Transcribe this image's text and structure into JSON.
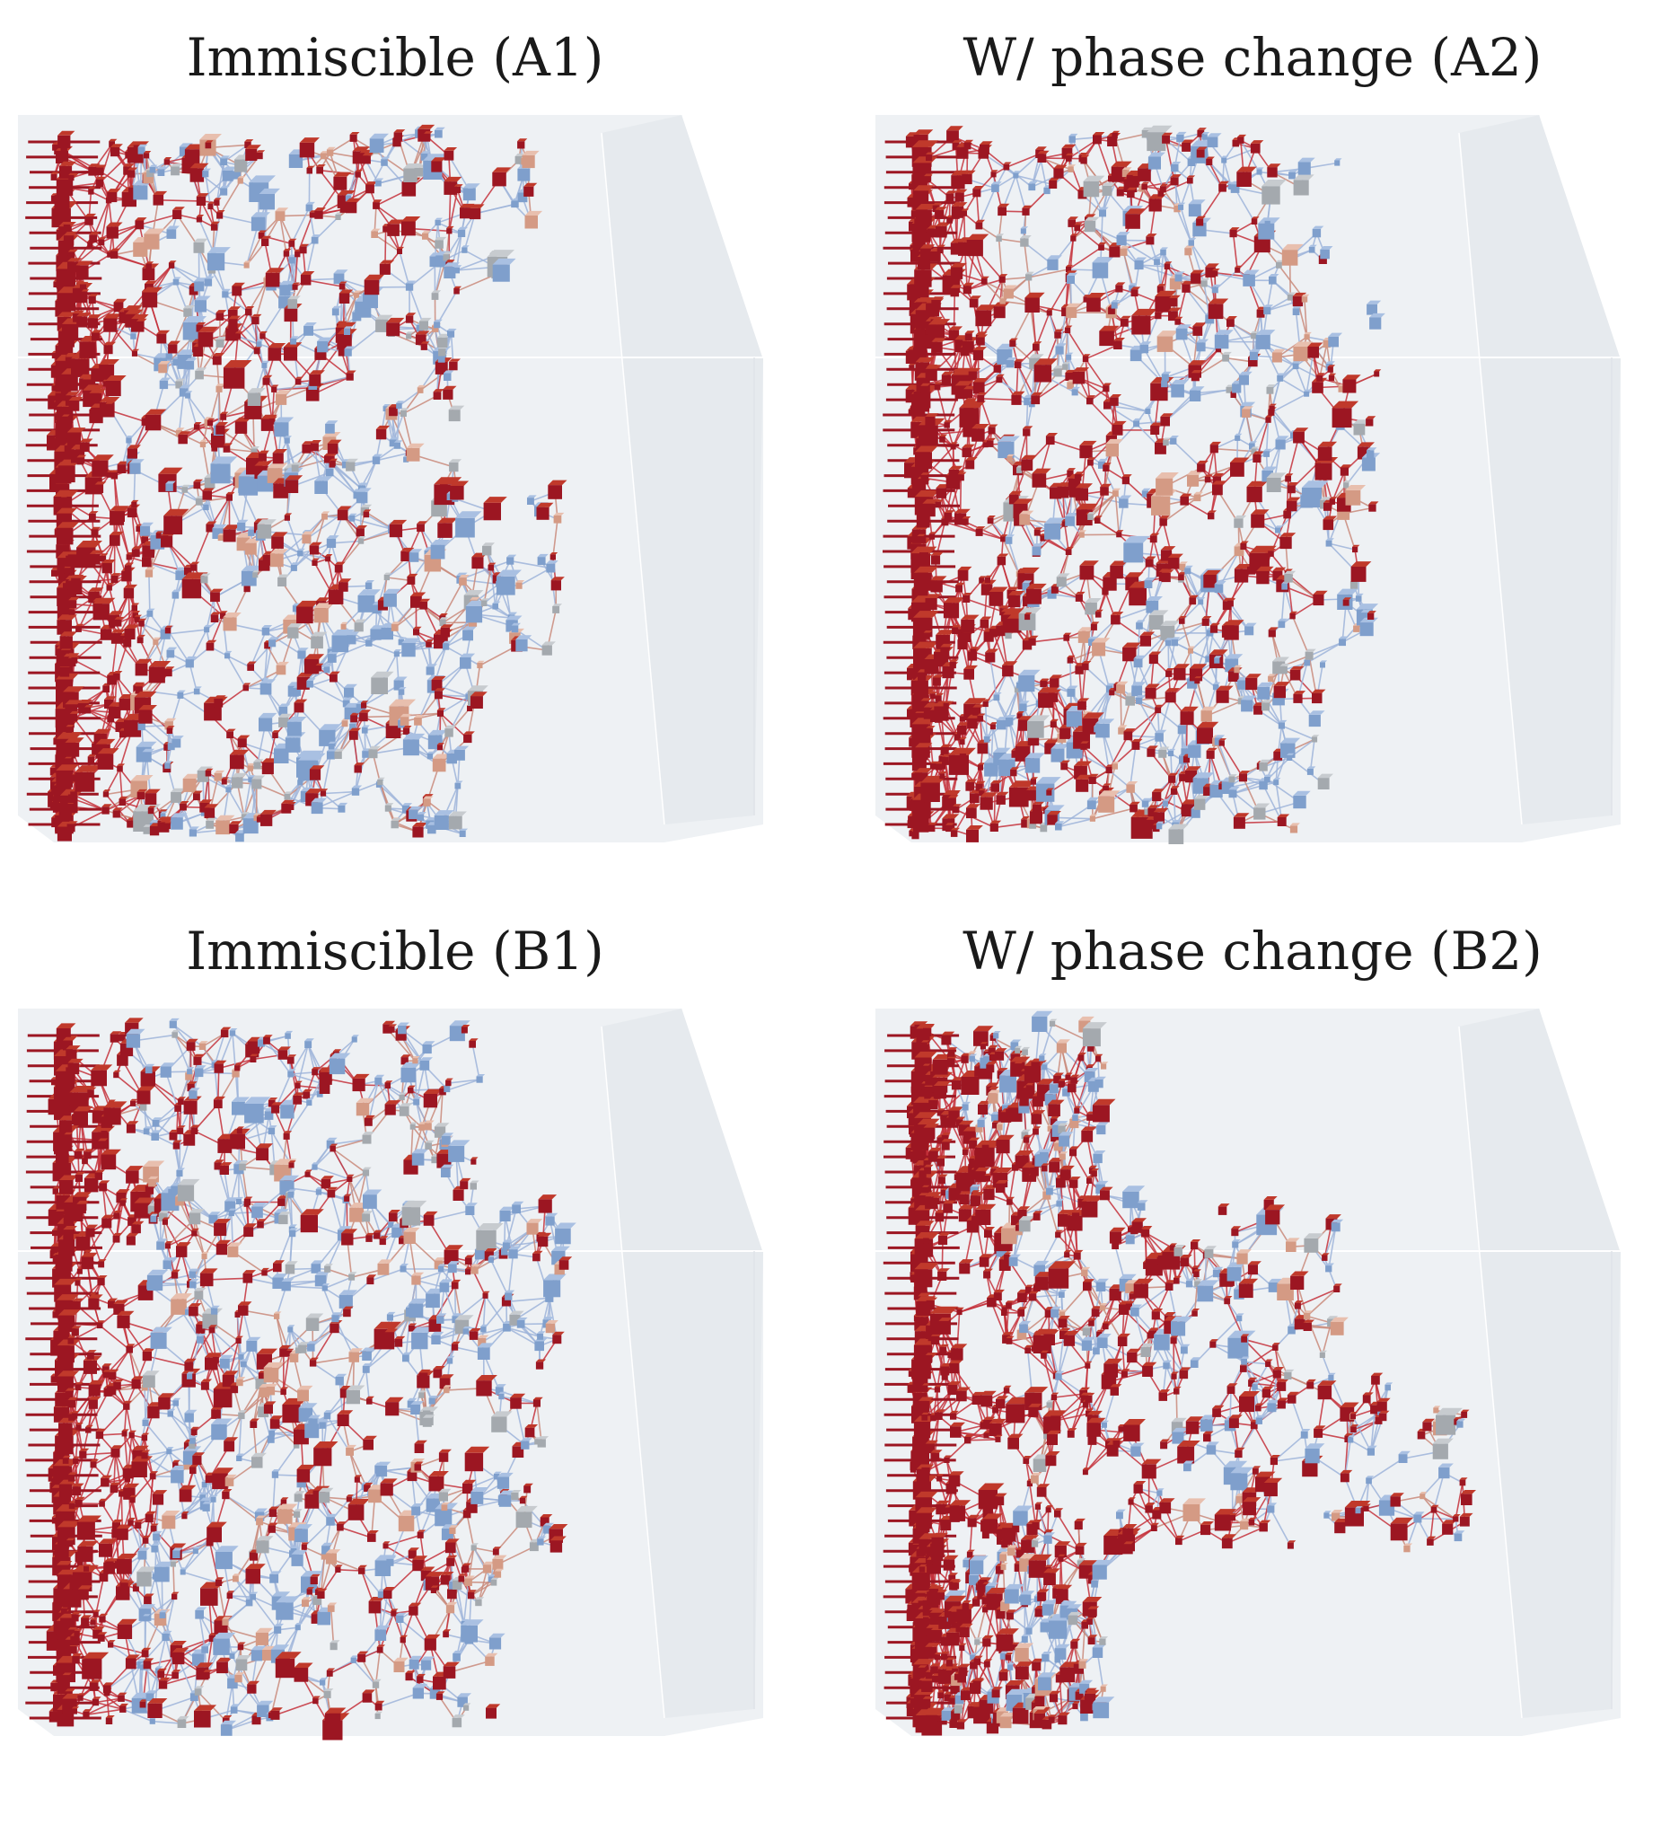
{
  "panels": [
    {
      "id": "a1",
      "title": "Immiscible (A1)",
      "front_reach": 0.74,
      "lobe_reach": [
        0.74,
        0.62,
        0.78,
        0.66
      ],
      "red_fraction": 0.55,
      "seed": 11
    },
    {
      "id": "a2",
      "title": "W/ phase change (A2)",
      "front_reach": 0.72,
      "lobe_reach": [
        0.66,
        0.72,
        0.72,
        0.64
      ],
      "red_fraction": 0.7,
      "seed": 23
    },
    {
      "id": "b1",
      "title": "Immiscible (B1)",
      "front_reach": 0.78,
      "lobe_reach": [
        0.66,
        0.8,
        0.78,
        0.7
      ],
      "red_fraction": 0.55,
      "seed": 37
    },
    {
      "id": "b2",
      "title": "W/ phase change (B2)",
      "front_reach": 0.82,
      "lobe_reach": [
        0.3,
        0.66,
        0.86,
        0.3
      ],
      "red_fraction": 0.88,
      "seed": 53
    }
  ],
  "colors": {
    "box_fill": "#eef1f4",
    "box_edge": "#ffffff",
    "invading": "#9c1622",
    "invading_light": "#c0392b",
    "defending": "#7f9fcc",
    "intermediate_warm": "#d49a84",
    "intermediate_neutral": "#a4a9ae",
    "throat_red": "#c4303a",
    "throat_blue": "#9db4d9"
  }
}
